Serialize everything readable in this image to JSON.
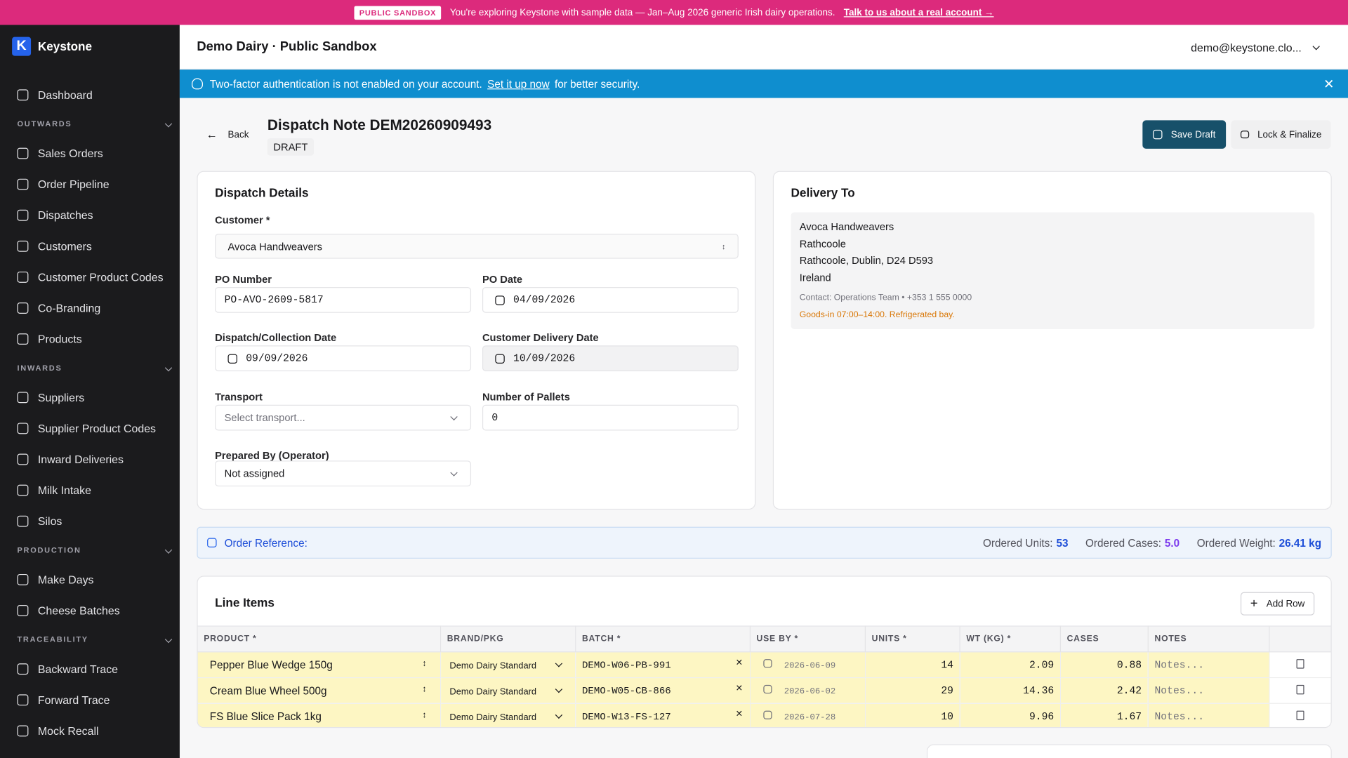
{
  "banner": {
    "badge": "PUBLIC SANDBOX",
    "text": "You're exploring Keystone with sample data — Jan–Aug 2026 generic Irish dairy operations.",
    "link": "Talk to us about a real account →"
  },
  "sidebar": {
    "brand": "Keystone",
    "top": [
      "Dashboard"
    ],
    "sections": [
      {
        "title": "OUTWARDS",
        "items": [
          "Sales Orders",
          "Order Pipeline",
          "Dispatches",
          "Customers",
          "Customer Product Codes",
          "Co-Branding",
          "Products"
        ]
      },
      {
        "title": "INWARDS",
        "items": [
          "Suppliers",
          "Supplier Product Codes",
          "Inward Deliveries",
          "Milk Intake",
          "Silos"
        ]
      },
      {
        "title": "PRODUCTION",
        "items": [
          "Make Days",
          "Cheese Batches"
        ]
      },
      {
        "title": "TRACEABILITY",
        "items": [
          "Backward Trace",
          "Forward Trace",
          "Mock Recall"
        ]
      }
    ]
  },
  "header": {
    "title": "Demo Dairy · Public Sandbox",
    "user": "demo@keystone.clo..."
  },
  "alert": {
    "text": "Two-factor authentication is not enabled on your account.",
    "link": "Set it up now",
    "tail": "for better security."
  },
  "page": {
    "back": "Back",
    "title": "Dispatch Note DEM20260909493",
    "status": "DRAFT",
    "actions": [
      "Save Draft",
      "Lock & Finalize"
    ]
  },
  "dispatch": {
    "title": "Dispatch Details",
    "fields": [
      {
        "label": "Customer *",
        "value": "Avoca Handweavers"
      },
      {
        "label": "PO Number",
        "value": "PO-AVO-2609-5817"
      },
      {
        "label": "PO Date",
        "value": "04/09/2026"
      },
      {
        "label": "Dispatch/Collection Date",
        "value": "09/09/2026"
      },
      {
        "label": "Customer Delivery Date",
        "value": "10/09/2026"
      },
      {
        "label": "Transport",
        "value": "Select transport..."
      },
      {
        "label": "Number of Pallets",
        "value": "0"
      },
      {
        "label": "Prepared By (Operator)",
        "value": "Not assigned"
      }
    ]
  },
  "delivery": {
    "title": "Delivery To",
    "address": [
      "Avoca Handweavers",
      "Rathcoole",
      "Rathcoole, Dublin, D24 D593",
      "Ireland"
    ],
    "contact": "Contact: Operations Team • +353 1 555 0000",
    "note": "Goods-in 07:00–14:00. Refrigerated bay."
  },
  "order_reference": {
    "label": "Order Reference:",
    "stats": [
      {
        "label": "Ordered Units:",
        "value": "53"
      },
      {
        "label": "Ordered Cases:",
        "value": "5.0"
      },
      {
        "label": "Ordered Weight:",
        "value": "26.41 kg"
      }
    ]
  },
  "line_items": {
    "title": "Line Items",
    "add": "Add Row",
    "columns": [
      "PRODUCT *",
      "BRAND/PKG",
      "BATCH *",
      "USE BY *",
      "UNITS *",
      "WT (KG) *",
      "CASES",
      "NOTES"
    ],
    "rows": [
      [
        "Pepper Blue Wedge 150g",
        "Demo Dairy Standard",
        "DEMO-W06-PB-991",
        "2026-06-09",
        "14",
        "2.09",
        "0.88",
        "Notes..."
      ],
      [
        "Cream Blue Wheel 500g",
        "Demo Dairy Standard",
        "DEMO-W05-CB-866",
        "2026-06-02",
        "29",
        "14.36",
        "2.42",
        "Notes..."
      ],
      [
        "FS Blue Slice Pack 1kg",
        "Demo Dairy Standard",
        "DEMO-W13-FS-127",
        "2026-07-28",
        "10",
        "9.96",
        "1.67",
        "Notes..."
      ]
    ]
  }
}
